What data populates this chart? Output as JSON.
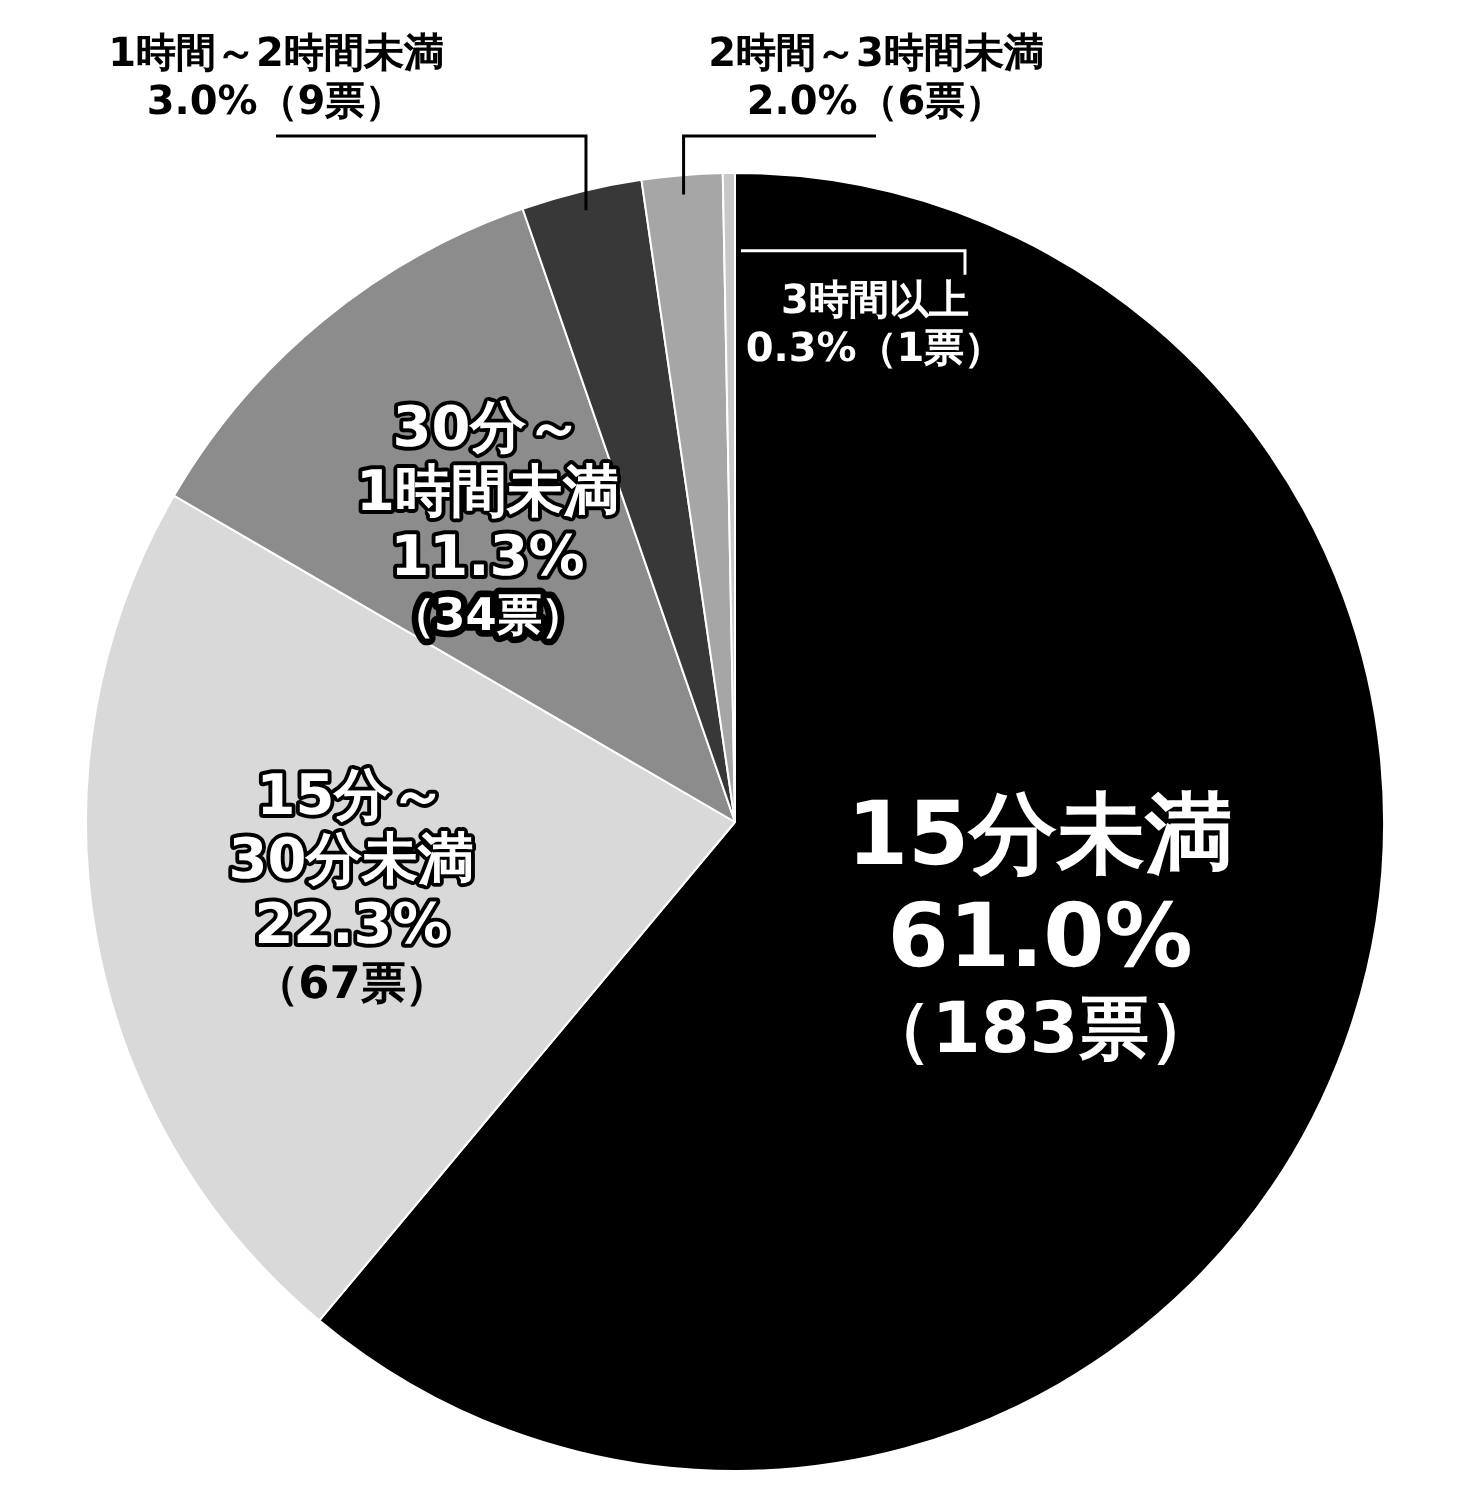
{
  "chart_data": {
    "type": "pie",
    "categories": [
      "15分未満",
      "15分～30分未満",
      "30分～1時間未満",
      "1時間～2時間未満",
      "2時間～3時間未満",
      "3時間以上"
    ],
    "values": [
      61.0,
      22.3,
      11.3,
      3.0,
      2.0,
      0.3
    ],
    "colors": [
      "#000000",
      "#d9d9d9",
      "#8c8c8c",
      "#383838",
      "#a6a6a6",
      "#c8c8c8"
    ],
    "value_labels": [
      "61.0%（183票）",
      "22.3%（67票）",
      "11.3%（34票）",
      "3.0%（9票）",
      "2.0%（6票）",
      "0.3%（1票）"
    ],
    "legend": false
  }
}
